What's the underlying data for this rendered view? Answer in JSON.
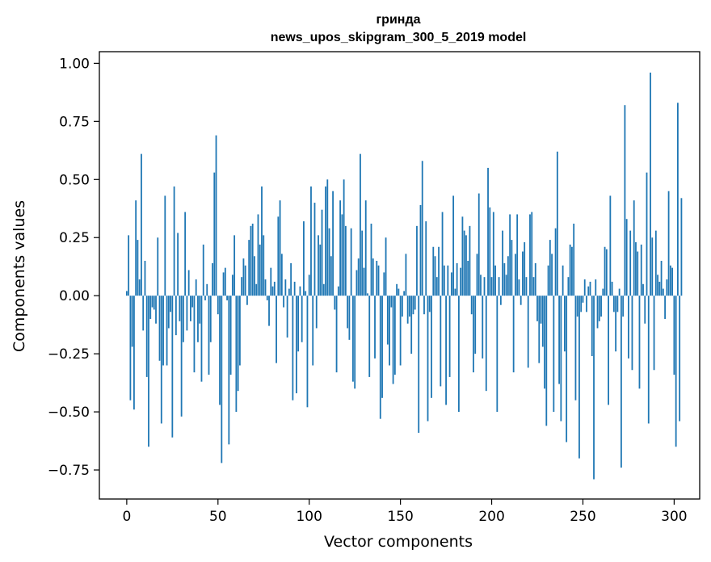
{
  "chart_data": {
    "type": "bar",
    "title_line1": "гринда",
    "title_line2": "news_upos_skipgram_300_5_2019 model",
    "xlabel": "Vector components",
    "ylabel": "Components values",
    "xlim": [
      -15,
      314
    ],
    "ylim": [
      -0.875,
      1.05
    ],
    "xticks": [
      0,
      50,
      100,
      150,
      200,
      250,
      300
    ],
    "xtick_labels": [
      "0",
      "50",
      "100",
      "150",
      "200",
      "250",
      "300"
    ],
    "yticks": [
      -0.75,
      -0.5,
      -0.25,
      0.0,
      0.25,
      0.5,
      0.75,
      1.0
    ],
    "ytick_labels": [
      "−0.75",
      "−0.50",
      "−0.25",
      "0.00",
      "0.25",
      "0.50",
      "0.75",
      "1.00"
    ],
    "bar_color": "#1f77b4",
    "values": [
      0.02,
      0.26,
      -0.45,
      -0.22,
      -0.49,
      0.41,
      0.24,
      0.07,
      0.61,
      -0.15,
      0.15,
      -0.35,
      -0.65,
      -0.1,
      -0.05,
      -0.06,
      -0.12,
      0.25,
      -0.28,
      -0.55,
      -0.3,
      0.43,
      -0.3,
      -0.14,
      -0.07,
      -0.61,
      0.47,
      -0.17,
      0.27,
      -0.11,
      -0.52,
      -0.2,
      0.36,
      -0.15,
      0.11,
      -0.11,
      -0.05,
      -0.33,
      0.07,
      -0.2,
      -0.12,
      -0.37,
      0.22,
      -0.02,
      0.05,
      -0.34,
      -0.2,
      0.14,
      0.53,
      0.69,
      -0.08,
      -0.47,
      -0.72,
      0.1,
      0.12,
      -0.02,
      -0.64,
      -0.34,
      0.09,
      0.26,
      -0.5,
      -0.41,
      -0.3,
      0.08,
      0.16,
      0.13,
      -0.04,
      0.24,
      0.3,
      0.31,
      0.17,
      0.05,
      0.35,
      0.22,
      0.47,
      0.26,
      0.07,
      -0.02,
      -0.13,
      0.12,
      0.04,
      0.06,
      -0.29,
      0.34,
      0.41,
      0.18,
      -0.05,
      0.07,
      -0.18,
      0.03,
      0.14,
      -0.45,
      0.06,
      -0.42,
      -0.24,
      0.04,
      -0.2,
      0.32,
      0.02,
      -0.48,
      0.09,
      0.47,
      -0.3,
      0.4,
      -0.14,
      0.26,
      0.22,
      0.37,
      0.05,
      0.47,
      0.5,
      0.29,
      0.17,
      0.45,
      -0.06,
      -0.33,
      0.04,
      0.41,
      0.35,
      0.5,
      0.3,
      -0.14,
      -0.19,
      0.29,
      -0.37,
      -0.4,
      0.11,
      0.16,
      0.61,
      0.28,
      0.12,
      0.41,
      0.01,
      -0.35,
      0.31,
      0.16,
      -0.27,
      0.15,
      0.13,
      -0.53,
      -0.44,
      0.1,
      0.25,
      -0.21,
      -0.3,
      -0.05,
      -0.38,
      -0.34,
      0.05,
      0.03,
      -0.3,
      -0.09,
      0.02,
      0.18,
      -0.12,
      -0.09,
      -0.25,
      -0.08,
      -0.06,
      0.3,
      -0.59,
      0.39,
      0.58,
      -0.08,
      0.32,
      -0.54,
      -0.07,
      -0.44,
      0.21,
      0.17,
      0.08,
      0.21,
      -0.39,
      0.36,
      0.13,
      -0.47,
      0.13,
      -0.35,
      0.1,
      0.43,
      0.03,
      0.14,
      -0.5,
      0.12,
      0.34,
      0.28,
      0.26,
      0.15,
      0.3,
      -0.08,
      -0.33,
      -0.25,
      0.18,
      0.44,
      0.09,
      -0.27,
      0.08,
      -0.41,
      0.55,
      0.38,
      0.08,
      0.36,
      0.13,
      -0.5,
      0.08,
      -0.04,
      0.28,
      0.14,
      0.09,
      0.17,
      0.35,
      0.24,
      -0.33,
      0.18,
      0.35,
      0.07,
      -0.04,
      0.19,
      0.23,
      0.08,
      -0.31,
      0.35,
      0.36,
      0.08,
      0.14,
      -0.11,
      -0.29,
      -0.12,
      -0.22,
      -0.4,
      -0.56,
      0.13,
      0.24,
      0.18,
      -0.5,
      0.29,
      0.62,
      -0.38,
      -0.54,
      0.13,
      -0.24,
      -0.63,
      0.08,
      0.22,
      0.21,
      0.31,
      -0.45,
      -0.09,
      -0.7,
      -0.07,
      -0.03,
      0.07,
      -0.07,
      0.04,
      0.06,
      -0.26,
      -0.79,
      0.07,
      -0.14,
      -0.11,
      -0.09,
      0.03,
      0.21,
      0.2,
      -0.47,
      0.43,
      0.06,
      -0.07,
      -0.24,
      -0.07,
      0.03,
      -0.74,
      -0.09,
      0.82,
      0.33,
      -0.27,
      0.28,
      -0.32,
      0.41,
      0.23,
      0.19,
      -0.4,
      0.22,
      0.05,
      -0.12,
      0.53,
      -0.55,
      0.96,
      0.25,
      -0.32,
      0.28,
      0.09,
      0.06,
      0.15,
      0.03,
      -0.1,
      0.07,
      0.45,
      0.13,
      0.12,
      -0.34,
      -0.65,
      0.83,
      -0.54,
      0.42
    ]
  }
}
